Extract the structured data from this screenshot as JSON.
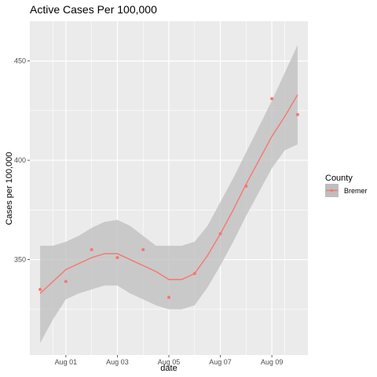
{
  "chart_data": {
    "type": "scatter",
    "title": "Active Cases Per 100,000",
    "xlabel": "date",
    "ylabel": "Cases per 100,000",
    "x_tick_labels": [
      "Aug 01",
      "Aug 03",
      "Aug 05",
      "Aug 07",
      "Aug 09"
    ],
    "x_tick_values": [
      1,
      3,
      5,
      7,
      9
    ],
    "y_tick_labels": [
      "350",
      "400",
      "450"
    ],
    "y_tick_values": [
      350,
      400,
      450
    ],
    "xlim": [
      -0.4,
      10.4
    ],
    "ylim": [
      302,
      470
    ],
    "grid": true,
    "legend": {
      "title": "County",
      "position": "right",
      "entries": [
        "Bremer"
      ]
    },
    "series": [
      {
        "name": "Bremer",
        "color": "#F8766D",
        "points": [
          {
            "x": 0,
            "y": 335
          },
          {
            "x": 1,
            "y": 339
          },
          {
            "x": 2,
            "y": 355
          },
          {
            "x": 3,
            "y": 351
          },
          {
            "x": 4,
            "y": 355
          },
          {
            "x": 5,
            "y": 331
          },
          {
            "x": 6,
            "y": 343
          },
          {
            "x": 7,
            "y": 363
          },
          {
            "x": 8,
            "y": 387
          },
          {
            "x": 9,
            "y": 431
          },
          {
            "x": 10,
            "y": 423
          }
        ],
        "smooth": [
          {
            "x": 0,
            "y": 333,
            "lo": 308,
            "hi": 357
          },
          {
            "x": 0.5,
            "y": 339,
            "lo": 320,
            "hi": 357
          },
          {
            "x": 1,
            "y": 345,
            "lo": 330,
            "hi": 359
          },
          {
            "x": 1.5,
            "y": 348,
            "lo": 333,
            "hi": 362
          },
          {
            "x": 2,
            "y": 351,
            "lo": 335,
            "hi": 366
          },
          {
            "x": 2.5,
            "y": 353,
            "lo": 337,
            "hi": 369
          },
          {
            "x": 3,
            "y": 353,
            "lo": 337,
            "hi": 370
          },
          {
            "x": 3.5,
            "y": 350,
            "lo": 333,
            "hi": 367
          },
          {
            "x": 4,
            "y": 347,
            "lo": 330,
            "hi": 362
          },
          {
            "x": 4.5,
            "y": 344,
            "lo": 327,
            "hi": 357
          },
          {
            "x": 5,
            "y": 340,
            "lo": 325,
            "hi": 357
          },
          {
            "x": 5.5,
            "y": 340,
            "lo": 325,
            "hi": 357
          },
          {
            "x": 6,
            "y": 343,
            "lo": 327,
            "hi": 359
          },
          {
            "x": 6.5,
            "y": 352,
            "lo": 336,
            "hi": 367
          },
          {
            "x": 7,
            "y": 363,
            "lo": 347,
            "hi": 379
          },
          {
            "x": 7.5,
            "y": 375,
            "lo": 359,
            "hi": 391
          },
          {
            "x": 8,
            "y": 388,
            "lo": 372,
            "hi": 404
          },
          {
            "x": 8.5,
            "y": 400,
            "lo": 384,
            "hi": 417
          },
          {
            "x": 9,
            "y": 412,
            "lo": 396,
            "hi": 430
          },
          {
            "x": 9.5,
            "y": 422,
            "lo": 405,
            "hi": 444
          },
          {
            "x": 10,
            "y": 433,
            "lo": 408,
            "hi": 458
          }
        ]
      }
    ]
  },
  "colors": {
    "panel_background": "#EBEBEB",
    "grid_line": "#FFFFFF",
    "ribbon": "#BEBEBE",
    "series": "#F8766D"
  }
}
